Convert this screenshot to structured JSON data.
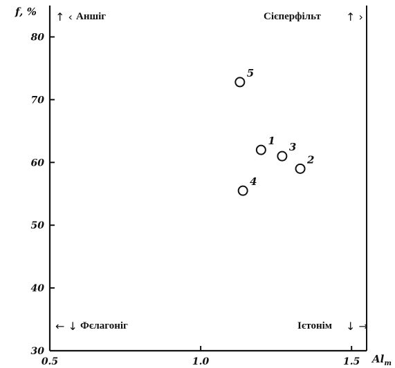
{
  "chart_data": {
    "type": "scatter",
    "title": "",
    "xlabel": "Al",
    "xlabel_sub": "m",
    "ylabel": "f, %",
    "xlim": [
      0.5,
      1.55
    ],
    "ylim": [
      30,
      85
    ],
    "x_ticks": [
      {
        "value": 0.5,
        "label": "0.5"
      },
      {
        "value": 1.0,
        "label": "1.0"
      },
      {
        "value": 1.5,
        "label": "1.5"
      }
    ],
    "y_ticks": [
      {
        "value": 30,
        "label": "30"
      },
      {
        "value": 40,
        "label": "40"
      },
      {
        "value": 50,
        "label": "50"
      },
      {
        "value": 60,
        "label": "60"
      },
      {
        "value": 70,
        "label": "70"
      },
      {
        "value": 80,
        "label": "80"
      }
    ],
    "grid": false,
    "points": [
      {
        "label": "5",
        "x": 1.13,
        "y": 72.8
      },
      {
        "label": "1",
        "x": 1.2,
        "y": 62.0
      },
      {
        "label": "3",
        "x": 1.27,
        "y": 61.0
      },
      {
        "label": "2",
        "x": 1.33,
        "y": 59.0
      },
      {
        "label": "4",
        "x": 1.14,
        "y": 55.5
      }
    ],
    "corner_labels": {
      "top_left": {
        "text": "Аншіг",
        "arrows": "↑ ‹"
      },
      "top_right": {
        "text": "Сієперфільт",
        "arrows": "↑ ›"
      },
      "bottom_left": {
        "text": "Фєлагоніг",
        "arrows": "← ↓"
      },
      "bottom_right": {
        "text": "Ієтонім",
        "arrows": "↓ →"
      }
    }
  }
}
